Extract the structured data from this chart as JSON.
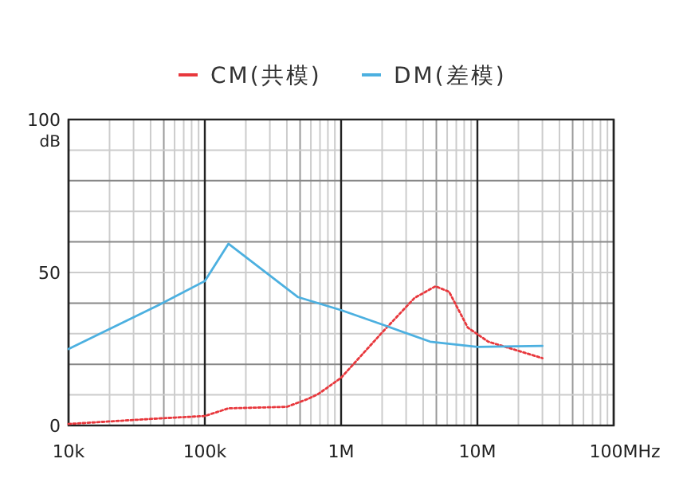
{
  "chart_data": {
    "type": "line",
    "log": "x",
    "grid": true,
    "legend": "top",
    "marker": "none",
    "ylabel": "dB",
    "xlim": [
      10000,
      100000000
    ],
    "xticks": [
      {
        "value": 10000,
        "label": "10k"
      },
      {
        "value": 100000,
        "label": "100k"
      },
      {
        "value": 1000000,
        "label": "1M"
      },
      {
        "value": 10000000,
        "label": "10M"
      },
      {
        "value": 100000000,
        "label": "100M"
      }
    ],
    "xlabel": "Hz",
    "ylim": [
      0,
      100
    ],
    "yticks": [
      0,
      {
        "value": 10,
        "label": null
      },
      {
        "value": 20,
        "label": null
      },
      {
        "value": 30,
        "label": null
      },
      {
        "value": 40,
        "label": null
      },
      50,
      {
        "value": 60,
        "label": null
      },
      {
        "value": 70,
        "label": null
      },
      {
        "value": 80,
        "label": null
      },
      {
        "value": 90,
        "label": null
      },
      100
    ],
    "series": [
      {
        "name": "CM(共模)",
        "color": "#e8383d",
        "line_style": "dotted",
        "x": [
          10000,
          46000,
          100000,
          149000,
          400000,
          573000,
          686000,
          1000000,
          2000000,
          3460000,
          4930000,
          6200000,
          8500000,
          12000000,
          30000000
        ],
        "values": [
          0.5,
          2.3,
          3.1,
          5.6,
          6.1,
          8.7,
          10.4,
          15.6,
          30.4,
          41.7,
          45.5,
          43.7,
          32,
          27.4,
          22
        ]
      },
      {
        "name": "DM(差模)",
        "color": "#4cb0e0",
        "line_style": "solid",
        "x": [
          10000,
          46000,
          100000,
          149000,
          480000,
          1000000,
          2000000,
          4500000,
          10000000,
          30000000
        ],
        "values": [
          25,
          39.4,
          47.2,
          59.4,
          42,
          37.7,
          33,
          27.4,
          25.7,
          26
        ]
      }
    ]
  }
}
